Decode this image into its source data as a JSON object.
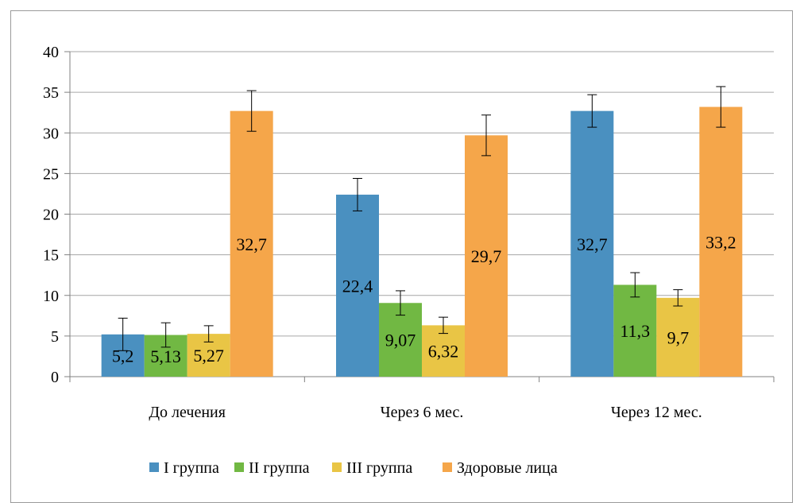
{
  "chart_data": {
    "type": "bar",
    "categories": [
      "До лечения",
      "Через 6 мес.",
      "Через 12 мес."
    ],
    "series": [
      {
        "name": "I группа",
        "values": [
          5.2,
          22.4,
          32.7
        ],
        "errors": [
          2.0,
          2.0,
          2.0
        ],
        "labels": [
          "5,2",
          "22,4",
          "32,7"
        ],
        "color": "#4a90c0"
      },
      {
        "name": "II группа",
        "values": [
          5.13,
          9.07,
          11.3
        ],
        "errors": [
          1.5,
          1.5,
          1.5
        ],
        "labels": [
          "5,13",
          "9,07",
          "11,3"
        ],
        "color": "#71b843"
      },
      {
        "name": "III группа",
        "values": [
          5.27,
          6.32,
          9.7
        ],
        "errors": [
          1.0,
          1.0,
          1.0
        ],
        "labels": [
          "5,27",
          "6,32",
          "9,7"
        ],
        "color": "#e9c545"
      },
      {
        "name": "Здоровые лица",
        "values": [
          32.7,
          29.7,
          33.2
        ],
        "errors": [
          2.5,
          2.5,
          2.5
        ],
        "labels": [
          "32,7",
          "29,7",
          "33,2"
        ],
        "color": "#f5a64a"
      }
    ],
    "yticks": [
      "0",
      "5",
      "10",
      "15",
      "20",
      "25",
      "30",
      "35",
      "40"
    ],
    "ylim": [
      0,
      40
    ],
    "grid": true,
    "legend": "bottom",
    "title": "",
    "xlabel": "",
    "ylabel": ""
  }
}
